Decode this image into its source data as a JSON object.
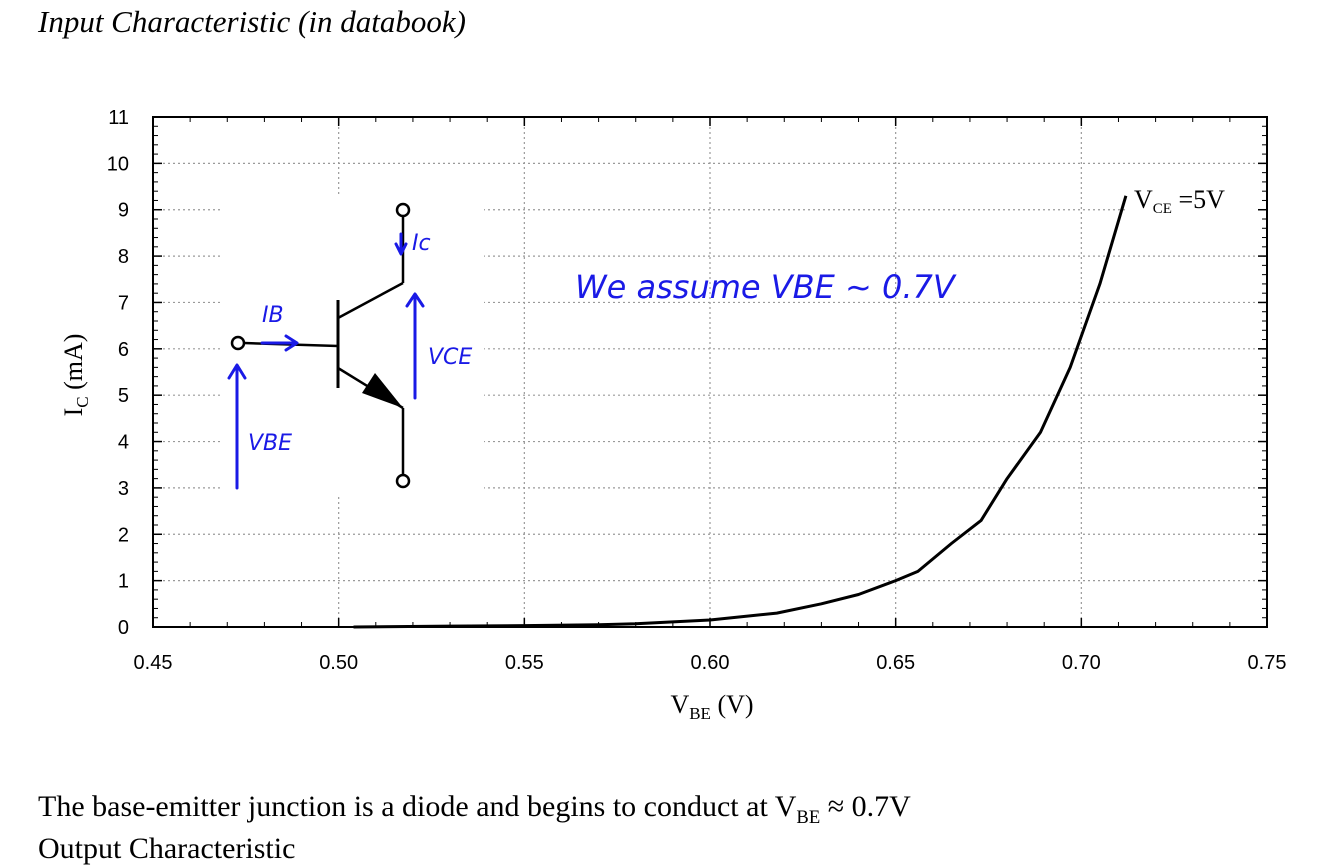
{
  "heading": "Input Characteristic (in databook)",
  "body_text": {
    "prefix": "The base-emitter junction is a diode and begins to conduct at V",
    "sub": "BE",
    "suffix": " ≈ 0.7V",
    "cut_line": "Output Characteristic"
  },
  "annotation": "We assume VBE ~ 0.7V",
  "circuit_labels": {
    "ib": "IB",
    "ic": "Ic",
    "vce": "VCE",
    "vbe": "VBE"
  },
  "colors": {
    "ink": "#1a1ae6",
    "curve": "#000000",
    "grid": "#9a9a9a"
  },
  "chart_data": {
    "type": "line",
    "xlabel": {
      "main": "V",
      "sub": "BE",
      "rest": " (V)"
    },
    "ylabel": {
      "main": "I",
      "sub": "C",
      "rest": " (mA)"
    },
    "xlim": [
      0.45,
      0.75
    ],
    "ylim": [
      0,
      11
    ],
    "x_ticks": [
      "0.45",
      "0.50",
      "0.55",
      "0.60",
      "0.65",
      "0.70",
      "0.75"
    ],
    "x_tick_values": [
      0.45,
      0.5,
      0.55,
      0.6,
      0.65,
      0.7,
      0.75
    ],
    "y_ticks": [
      "0",
      "1",
      "2",
      "3",
      "4",
      "5",
      "6",
      "7",
      "8",
      "9",
      "10",
      "11"
    ],
    "grid": true,
    "series": [
      {
        "name": "VCE =5V",
        "x": [
          0.504,
          0.53,
          0.55,
          0.57,
          0.58,
          0.6,
          0.618,
          0.63,
          0.64,
          0.65,
          0.656,
          0.665,
          0.673,
          0.68,
          0.689,
          0.697,
          0.705,
          0.712
        ],
        "y": [
          0.0,
          0.02,
          0.03,
          0.05,
          0.07,
          0.15,
          0.3,
          0.5,
          0.7,
          1.0,
          1.2,
          1.8,
          2.3,
          3.2,
          4.2,
          5.6,
          7.4,
          9.3
        ]
      }
    ]
  }
}
